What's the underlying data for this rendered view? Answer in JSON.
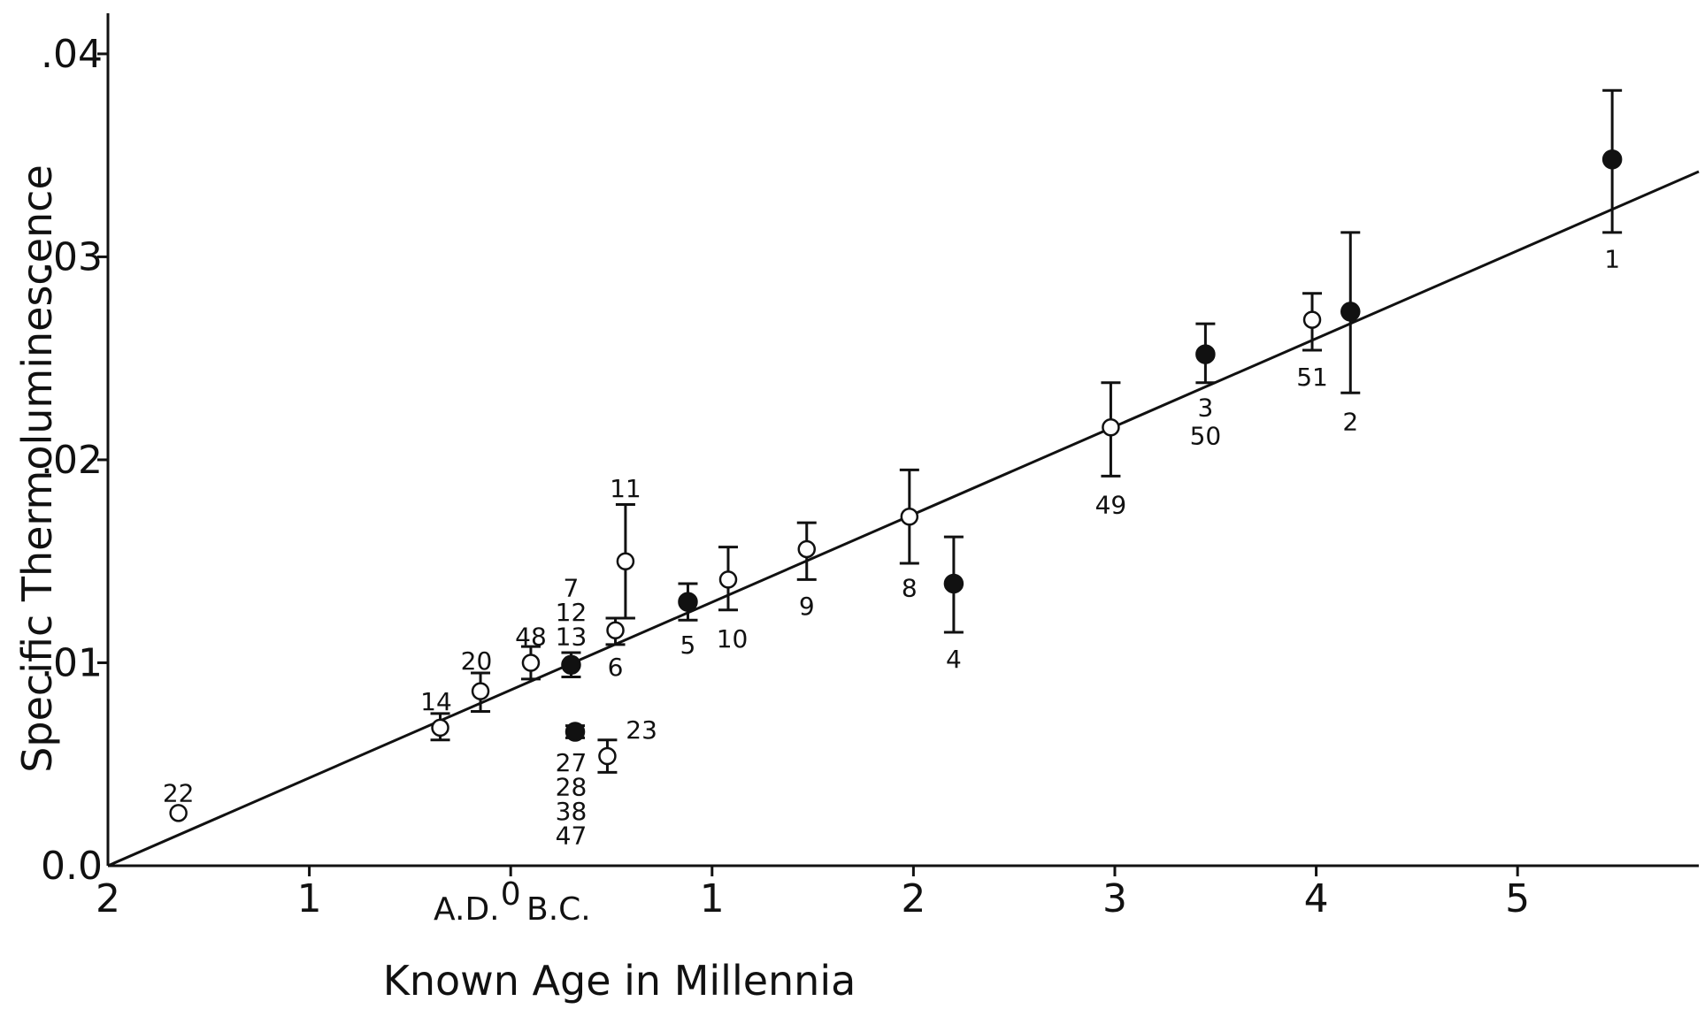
{
  "chart_data": {
    "type": "scatter",
    "title": "",
    "xlabel": "Known Age in Millennia",
    "ylabel": "Specific Thermoluminescence",
    "xlim": [
      -2,
      5.9
    ],
    "ylim": [
      0,
      0.042
    ],
    "x_tick_labels": [
      "2",
      "1",
      "0",
      "1",
      "2",
      "3",
      "4",
      "5"
    ],
    "x_tick_values": [
      -2,
      -1,
      0,
      1,
      2,
      3,
      4,
      5
    ],
    "y_tick_labels": [
      "0.0",
      ".01",
      ".02",
      ".03",
      ".04"
    ],
    "y_tick_values": [
      0,
      0.01,
      0.02,
      0.03,
      0.04
    ],
    "era_labels": {
      "left": "A.D.",
      "right": "B.C."
    },
    "grid": false,
    "trend_line": {
      "x": [
        -2,
        5.9
      ],
      "y": [
        0,
        0.0342
      ]
    },
    "points": [
      {
        "id": "22",
        "x": -1.65,
        "y": 0.0026,
        "filled": false
      },
      {
        "id": "14",
        "x": -0.35,
        "y": 0.0068,
        "filled": false,
        "err": [
          0.0062,
          0.0075
        ]
      },
      {
        "id": "20",
        "x": -0.15,
        "y": 0.0086,
        "filled": false,
        "err": [
          0.0076,
          0.0095
        ]
      },
      {
        "id": "48",
        "x": 0.1,
        "y": 0.01,
        "filled": false,
        "err": [
          0.0092,
          0.0108
        ]
      },
      {
        "id": "7 12 13",
        "x": 0.3,
        "y": 0.0099,
        "filled": true,
        "err": [
          0.0093,
          0.0105
        ]
      },
      {
        "id": "23",
        "x": 0.32,
        "y": 0.0066,
        "filled": true,
        "err": [
          0.0063,
          0.0069
        ]
      },
      {
        "id": "27 28 38 47",
        "x": 0.48,
        "y": 0.0054,
        "filled": false,
        "err": [
          0.0046,
          0.0062
        ]
      },
      {
        "id": "6",
        "x": 0.52,
        "y": 0.0116,
        "filled": false,
        "err": [
          0.0109,
          0.0122
        ]
      },
      {
        "id": "11",
        "x": 0.57,
        "y": 0.015,
        "filled": false,
        "err": [
          0.0122,
          0.0178
        ]
      },
      {
        "id": "5",
        "x": 0.88,
        "y": 0.013,
        "filled": true,
        "err": [
          0.0121,
          0.0139
        ]
      },
      {
        "id": "10",
        "x": 1.08,
        "y": 0.0141,
        "filled": false,
        "err": [
          0.0126,
          0.0157
        ]
      },
      {
        "id": "9",
        "x": 1.47,
        "y": 0.0156,
        "filled": false,
        "err": [
          0.0141,
          0.0169
        ]
      },
      {
        "id": "8",
        "x": 1.98,
        "y": 0.0172,
        "filled": false,
        "err": [
          0.0149,
          0.0195
        ]
      },
      {
        "id": "4",
        "x": 2.2,
        "y": 0.0139,
        "filled": true,
        "err": [
          0.0115,
          0.0162
        ]
      },
      {
        "id": "49",
        "x": 2.98,
        "y": 0.0216,
        "filled": false,
        "err": [
          0.0192,
          0.0238
        ]
      },
      {
        "id": "3",
        "x": 3.45,
        "y": 0.0252,
        "filled": true,
        "err": [
          0.0238,
          0.0267
        ]
      },
      {
        "id": "51",
        "x": 3.98,
        "y": 0.0269,
        "filled": false,
        "err": [
          0.0254,
          0.0282
        ]
      },
      {
        "id": "2",
        "x": 4.17,
        "y": 0.0273,
        "filled": true,
        "err": [
          0.0233,
          0.0312
        ]
      },
      {
        "id": "1",
        "x": 5.47,
        "y": 0.0348,
        "filled": true,
        "err": [
          0.0312,
          0.0382
        ]
      }
    ],
    "point_labels": [
      {
        "text": "22",
        "x": -1.65,
        "y": 0.0036
      },
      {
        "text": "14",
        "x": -0.37,
        "y": 0.0081
      },
      {
        "text": "20",
        "x": -0.17,
        "y": 0.0101
      },
      {
        "text": "48",
        "x": 0.1,
        "y": 0.0113
      },
      {
        "text": "7",
        "x": 0.3,
        "y": 0.0137
      },
      {
        "text": "12",
        "x": 0.3,
        "y": 0.0125
      },
      {
        "text": "13",
        "x": 0.3,
        "y": 0.0113
      },
      {
        "text": "23",
        "x": 0.65,
        "y": 0.0067
      },
      {
        "text": "27",
        "x": 0.3,
        "y": 0.0051
      },
      {
        "text": "28",
        "x": 0.3,
        "y": 0.0039
      },
      {
        "text": "38",
        "x": 0.3,
        "y": 0.0027
      },
      {
        "text": "47",
        "x": 0.3,
        "y": 0.0015
      },
      {
        "text": "6",
        "x": 0.52,
        "y": 0.0098
      },
      {
        "text": "11",
        "x": 0.57,
        "y": 0.0186
      },
      {
        "text": "5",
        "x": 0.88,
        "y": 0.0109
      },
      {
        "text": "10",
        "x": 1.1,
        "y": 0.0112
      },
      {
        "text": "9",
        "x": 1.47,
        "y": 0.0128
      },
      {
        "text": "8",
        "x": 1.98,
        "y": 0.0137
      },
      {
        "text": "4",
        "x": 2.2,
        "y": 0.0102
      },
      {
        "text": "49",
        "x": 2.98,
        "y": 0.0178
      },
      {
        "text": "3",
        "x": 3.45,
        "y": 0.0226
      },
      {
        "text": "50",
        "x": 3.45,
        "y": 0.0212
      },
      {
        "text": "51",
        "x": 3.98,
        "y": 0.0241
      },
      {
        "text": "2",
        "x": 4.17,
        "y": 0.0219
      },
      {
        "text": "1",
        "x": 5.47,
        "y": 0.0299
      }
    ]
  }
}
